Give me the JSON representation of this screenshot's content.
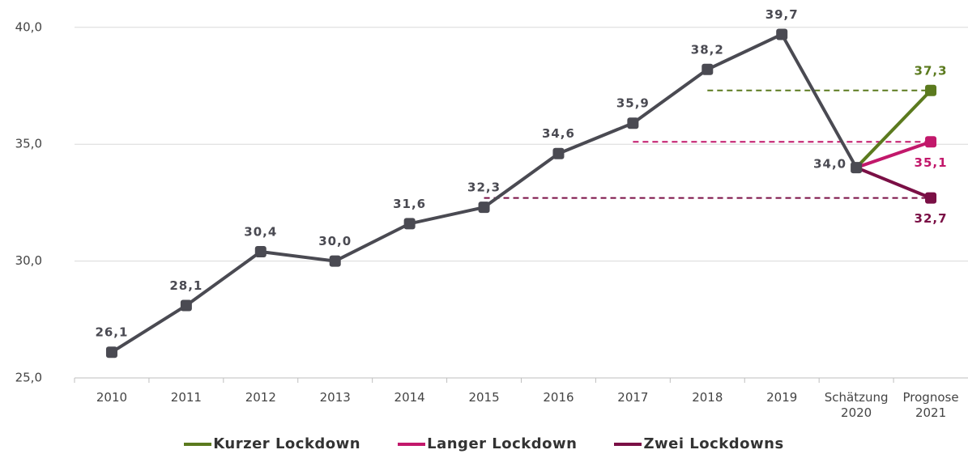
{
  "chart_data": {
    "type": "line",
    "categories": [
      "2010",
      "2011",
      "2012",
      "2013",
      "2014",
      "2015",
      "2016",
      "2017",
      "2018",
      "2019",
      "Schätzung 2020",
      "Prognose 2021"
    ],
    "series": [
      {
        "color": "#4a4a52",
        "values": [
          26.1,
          28.1,
          30.4,
          30.0,
          31.6,
          32.3,
          34.6,
          35.9,
          38.2,
          39.7,
          34.0,
          null
        ],
        "value_labels": [
          "26,1",
          "28,1",
          "30,4",
          "30,0",
          "31,6",
          "32,3",
          "34,6",
          "35,9",
          "38,2",
          "39,7",
          "34,0",
          null
        ]
      },
      {
        "name": "Kurzer Lockdown",
        "color": "#5b7a1e",
        "values": [
          null,
          null,
          null,
          null,
          null,
          null,
          null,
          null,
          null,
          null,
          34.0,
          37.3
        ],
        "value_labels": [
          null,
          null,
          null,
          null,
          null,
          null,
          null,
          null,
          null,
          null,
          null,
          "37,3"
        ]
      },
      {
        "name": "Langer Lockdown",
        "color": "#c2186b",
        "values": [
          null,
          null,
          null,
          null,
          null,
          null,
          null,
          null,
          null,
          null,
          34.0,
          35.1
        ],
        "value_labels": [
          null,
          null,
          null,
          null,
          null,
          null,
          null,
          null,
          null,
          null,
          null,
          "35,1"
        ]
      },
      {
        "name": "Zwei Lockdowns",
        "color": "#7a0f45",
        "values": [
          null,
          null,
          null,
          null,
          null,
          null,
          null,
          null,
          null,
          null,
          34.0,
          32.7
        ],
        "value_labels": [
          null,
          null,
          null,
          null,
          null,
          null,
          null,
          null,
          null,
          null,
          null,
          "32,7"
        ]
      }
    ],
    "reference_lines": [
      {
        "y": 37.3,
        "x_from": "2018",
        "color": "#5b7a1e"
      },
      {
        "y": 35.1,
        "x_from": "2017",
        "color": "#c2186b"
      },
      {
        "y": 32.7,
        "x_from": "2015",
        "color": "#7a0f45"
      }
    ],
    "ylim": [
      25,
      41.17
    ],
    "yticks": [
      {
        "value": 25,
        "label": "25,0"
      },
      {
        "value": 30,
        "label": "30,0"
      },
      {
        "value": 35,
        "label": "35,0"
      },
      {
        "value": 40,
        "label": "40,0"
      }
    ],
    "grid": true,
    "legend": "bottom"
  }
}
